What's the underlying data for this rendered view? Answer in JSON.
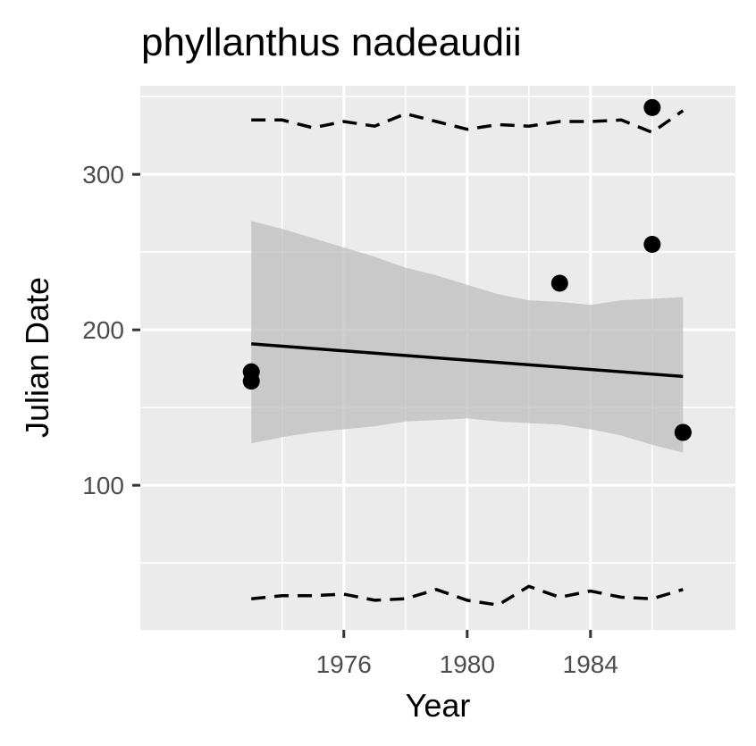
{
  "chart_data": {
    "type": "scatter",
    "title": "phyllanthus nadeaudii",
    "xlabel": "Year",
    "ylabel": "Julian Date",
    "xlim": [
      1969.4,
      1988.7
    ],
    "ylim": [
      7,
      357
    ],
    "x_ticks": [
      1976,
      1980,
      1984
    ],
    "x_tick_labels": [
      "1976",
      "1980",
      "1984"
    ],
    "y_ticks": [
      100,
      200,
      300
    ],
    "y_tick_labels": [
      "100",
      "200",
      "300"
    ],
    "grid": true,
    "legend": "none",
    "colors": {
      "panel": "#ebebeb",
      "grid": "#ffffff",
      "points": "#000000",
      "ribbon": "#bdbdbd",
      "fit_line": "#000000",
      "bounds": "#000000",
      "tick_text": "#4d4d4d"
    },
    "points": [
      {
        "x": 1973,
        "y": 173
      },
      {
        "x": 1973,
        "y": 167
      },
      {
        "x": 1983,
        "y": 230
      },
      {
        "x": 1986,
        "y": 343
      },
      {
        "x": 1986,
        "y": 255
      },
      {
        "x": 1987,
        "y": 134
      },
      {
        "x": 1987,
        "y": 134
      }
    ],
    "fit_line": [
      {
        "x": 1973,
        "y": 191
      },
      {
        "x": 1987,
        "y": 170
      }
    ],
    "confidence_band": {
      "x": [
        1973,
        1974,
        1975,
        1976,
        1977,
        1978,
        1979,
        1980,
        1981,
        1982,
        1983,
        1984,
        1985,
        1986,
        1987
      ],
      "upper": [
        270,
        265,
        259,
        253,
        247,
        240,
        235,
        229,
        223,
        219,
        218,
        216,
        219,
        220,
        221
      ],
      "lower": [
        127,
        131,
        134,
        136,
        138,
        141,
        142,
        143,
        141,
        140,
        139,
        136,
        132,
        126,
        121
      ]
    },
    "upper_bound": {
      "x": [
        1973,
        1974,
        1975,
        1976,
        1977,
        1978,
        1979,
        1980,
        1981,
        1982,
        1983,
        1984,
        1985,
        1986,
        1987
      ],
      "y": [
        335,
        335,
        330,
        334,
        331,
        339,
        334,
        329,
        332,
        331,
        334,
        334,
        335,
        327,
        341
      ]
    },
    "lower_bound": {
      "x": [
        1973,
        1974,
        1975,
        1976,
        1977,
        1978,
        1979,
        1980,
        1981,
        1982,
        1983,
        1984,
        1985,
        1986,
        1987
      ],
      "y": [
        27,
        29,
        29,
        30,
        26,
        27,
        33,
        26,
        23,
        35,
        28,
        32,
        28,
        27,
        33
      ]
    }
  }
}
